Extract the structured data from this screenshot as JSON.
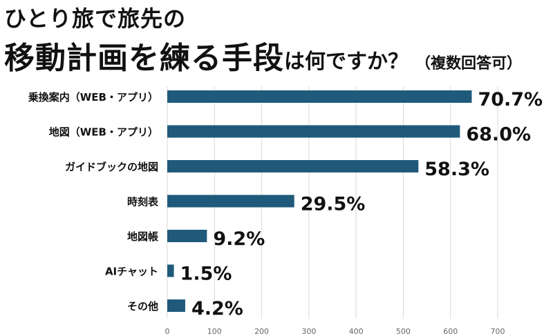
{
  "header": {
    "title_line1": "ひとり旅で旅先の",
    "title_line2_main": "移動計画を練る手段",
    "title_line2_sub": "は何ですか？",
    "title_note": "（複数回答可）"
  },
  "colors": {
    "bar": "#1f5a7a",
    "grid": "#d9d9d9",
    "text": "#111111",
    "tick": "#666666"
  },
  "chart_data": {
    "type": "bar",
    "orientation": "horizontal",
    "title": "ひとり旅で旅先の移動計画を練る手段は何ですか？（複数回答可）",
    "categories": [
      "乗換案内（WEB・アプリ）",
      "地図（WEB・アプリ）",
      "ガイドブックの地図",
      "時刻表",
      "地図帳",
      "AIチャット",
      "その他"
    ],
    "values": [
      70.7,
      68.0,
      58.3,
      29.5,
      9.2,
      1.5,
      4.2
    ],
    "bar_lengths": [
      645,
      620,
      532,
      269,
      84,
      14,
      38
    ],
    "value_labels": [
      "70.7%",
      "68.0%",
      "58.3%",
      "29.5%",
      "9.2%",
      "1.5%",
      "4.2%"
    ],
    "x_ticks": [
      0,
      100,
      200,
      300,
      400,
      500,
      600,
      700
    ],
    "xlim": [
      0,
      700
    ],
    "xlabel": "",
    "ylabel": "",
    "grid": true
  }
}
